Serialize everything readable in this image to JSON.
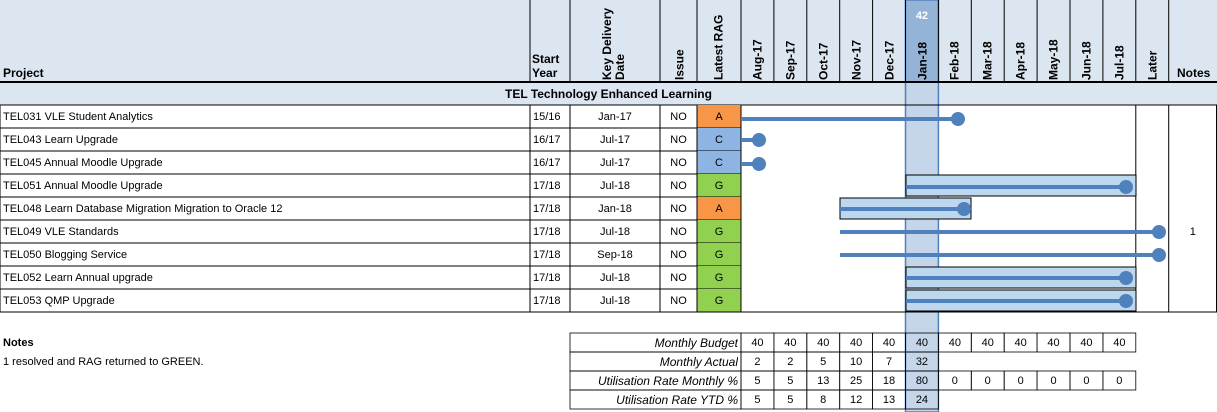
{
  "header": {
    "project": "Project",
    "start_year": "Start Year",
    "delivery": "Key Delivery Date",
    "issue": "Issue",
    "rag": "Latest RAG",
    "months": [
      "Aug-17",
      "Sep-17",
      "Oct-17",
      "Nov-17",
      "Dec-17",
      "Jan-18",
      "Feb-18",
      "Mar-18",
      "Apr-18",
      "May-18",
      "Jun-18",
      "Jul-18"
    ],
    "later": "Later",
    "notes": "Notes",
    "current_week": "42",
    "current_month_index": 5
  },
  "section": "TEL Technology Enhanced Learning",
  "rag_colors": {
    "A": "#f79646",
    "C": "#8db4e2",
    "G": "#92d050"
  },
  "rows": [
    {
      "name": "TEL031 VLE Student Analytics",
      "start_year": "15/16",
      "delivery": "Jan-17",
      "issue": "NO",
      "rag": "A",
      "note": null
    },
    {
      "name": "TEL043 Learn Upgrade",
      "start_year": "16/17",
      "delivery": "Jul-17",
      "issue": "NO",
      "rag": "C",
      "note": null
    },
    {
      "name": "TEL045 Annual Moodle Upgrade",
      "start_year": "16/17",
      "delivery": "Jul-17",
      "issue": "NO",
      "rag": "C",
      "note": null
    },
    {
      "name": "TEL051 Annual Moodle Upgrade",
      "start_year": "17/18",
      "delivery": "Jul-18",
      "issue": "NO",
      "rag": "G",
      "note": null
    },
    {
      "name": "TEL048 Learn Database Migration Migration to Oracle 12",
      "start_year": "17/18",
      "delivery": "Jan-18",
      "issue": "NO",
      "rag": "A",
      "note": null
    },
    {
      "name": "TEL049 VLE Standards",
      "start_year": "17/18",
      "delivery": "Jul-18",
      "issue": "NO",
      "rag": "G",
      "note": "1"
    },
    {
      "name": "TEL050 Blogging Service",
      "start_year": "17/18",
      "delivery": "Sep-18",
      "issue": "NO",
      "rag": "G",
      "note": null
    },
    {
      "name": "TEL052 Learn Annual upgrade",
      "start_year": "17/18",
      "delivery": "Jul-18",
      "issue": "NO",
      "rag": "G",
      "note": null
    },
    {
      "name": "TEL053 QMP Upgrade",
      "start_year": "17/18",
      "delivery": "Jul-18",
      "issue": "NO",
      "rag": "G",
      "note": null
    }
  ],
  "notes": {
    "title": "Notes",
    "lines": [
      "1 resolved and RAG returned to GREEN."
    ]
  },
  "summary": [
    {
      "label": "Monthly Budget",
      "values": [
        40,
        40,
        40,
        40,
        40,
        40,
        40,
        40,
        40,
        40,
        40,
        40
      ]
    },
    {
      "label": "Monthly Actual",
      "values": [
        2,
        2,
        5,
        10,
        7,
        32,
        null,
        null,
        null,
        null,
        null,
        null
      ]
    },
    {
      "label": "Utilisation Rate Monthly %",
      "values": [
        5,
        5,
        13,
        25,
        18,
        80,
        0,
        0,
        0,
        0,
        0,
        0
      ]
    },
    {
      "label": "Utilisation Rate YTD %",
      "values": [
        5,
        5,
        8,
        12,
        13,
        24,
        null,
        null,
        null,
        null,
        null,
        null
      ]
    }
  ]
}
